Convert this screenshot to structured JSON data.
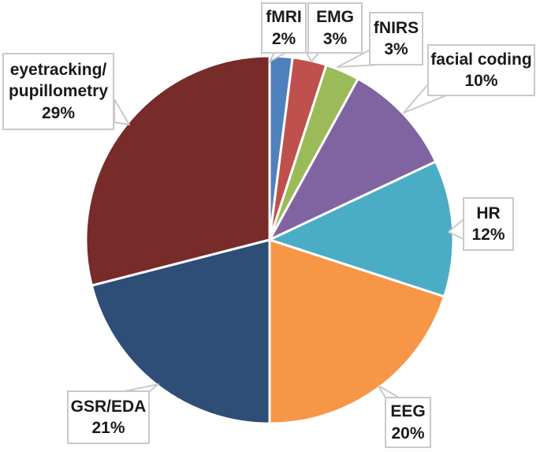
{
  "chart_data": {
    "type": "pie",
    "title": "",
    "categories": [
      "fMRI",
      "EMG",
      "fNIRS",
      "facial coding",
      "HR",
      "EEG",
      "GSR/EDA",
      "eyetracking/pupillometry"
    ],
    "values": [
      2,
      3,
      3,
      10,
      12,
      20,
      21,
      29
    ],
    "unit": "%",
    "colors": [
      "#4F81BD",
      "#C0504D",
      "#9BBB59",
      "#8064A2",
      "#4BACC6",
      "#F79646",
      "#2E4D77",
      "#772C2A"
    ],
    "start_angle_deg": -90,
    "direction": "clockwise",
    "slice_border_color": "#FFFFFF",
    "legend_position": "none",
    "label_style": "external-callout-boxes"
  },
  "callouts": [
    {
      "id": "fmri",
      "label": "fMRI",
      "value": "2%"
    },
    {
      "id": "emg",
      "label": "EMG",
      "value": "3%"
    },
    {
      "id": "fnirs",
      "label": "fNIRS",
      "value": "3%"
    },
    {
      "id": "facial",
      "label": "facial coding",
      "value": "10%"
    },
    {
      "id": "hr",
      "label": "HR",
      "value": "12%"
    },
    {
      "id": "eeg",
      "label": "EEG",
      "value": "20%"
    },
    {
      "id": "gsr",
      "label": "GSR/EDA",
      "value": "21%"
    },
    {
      "id": "eye",
      "label": "eyetracking/\npupillometry",
      "value": "29%"
    }
  ],
  "styles": {
    "callout_border_color": "#C9C9C9",
    "text_color": "#1A1A1A",
    "background_color": "#FFFFFF"
  }
}
